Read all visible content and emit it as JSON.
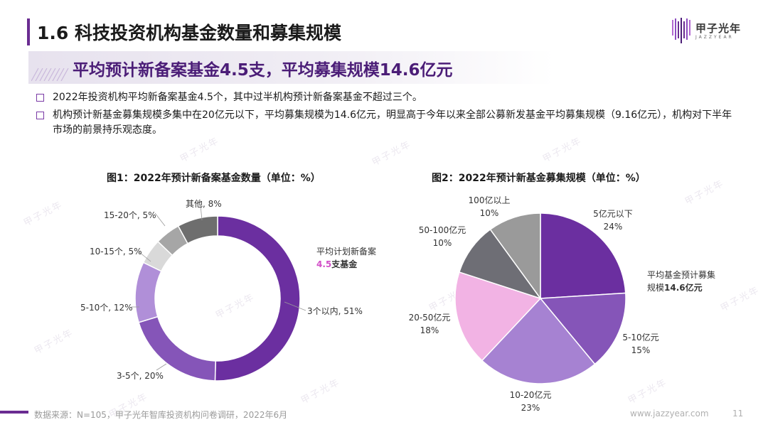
{
  "header": {
    "title": "1.6 科技投资机构基金数量和募集规模",
    "logo_cn": "甲子光年",
    "logo_en": "JAZZYEAR"
  },
  "subtitle": "平均预计新备案基金4.5支，平均募集规模14.6亿元",
  "bullets": [
    "2022年投资机构平均新备案基金4.5个，其中过半机构预计新备案基金不超过三个。",
    "机构预计新基金募集规模多集中在20亿元以下，平均募集规模为14.6亿元，明显高于今年以来全部公募新发基金平均募集规模（9.16亿元），机构对下半年市场的前景持乐观态度。"
  ],
  "watermark_text": "甲子光年",
  "chart_data": [
    {
      "type": "pie",
      "variant": "donut",
      "title": "图1：2022年预计新备案基金数量（单位：%）",
      "center_note": {
        "line1": "平均计划新备案",
        "line2_value": "4.5",
        "line2_suffix": "支基金"
      },
      "slices": [
        {
          "label": "3个以内, 51%",
          "value": 51,
          "color": "#6b2fa0"
        },
        {
          "label": "3-5个, 20%",
          "value": 20,
          "color": "#8555b8"
        },
        {
          "label": "5-10个, 12%",
          "value": 12,
          "color": "#b08fd8"
        },
        {
          "label": "10-15个, 5%",
          "value": 5,
          "color": "#d9d9d9"
        },
        {
          "label": "15-20个, 5%",
          "value": 5,
          "color": "#a6a6a6"
        },
        {
          "label": "其他, 8%",
          "value": 8,
          "color": "#6e6e6e"
        }
      ]
    },
    {
      "type": "pie",
      "title": "图2：2022年预计新基金募集规模（单位：%）",
      "note": {
        "line1": "平均基金预计募集",
        "line2_prefix": "规模",
        "line2_value": "14.6亿元"
      },
      "slices": [
        {
          "name": "5亿元以下",
          "pct": "24%",
          "value": 24,
          "color": "#6b2fa0"
        },
        {
          "name": "5-10亿元",
          "pct": "15%",
          "value": 15,
          "color": "#8555b8"
        },
        {
          "name": "10-20亿元",
          "pct": "23%",
          "value": 23,
          "color": "#a682d2"
        },
        {
          "name": "20-50亿元",
          "pct": "18%",
          "value": 18,
          "color": "#f2b3e4"
        },
        {
          "name": "50-100亿元",
          "pct": "10%",
          "value": 10,
          "color": "#6e6e75"
        },
        {
          "name": "100亿以上",
          "pct": "10%",
          "value": 10,
          "color": "#9a9a9a"
        }
      ]
    }
  ],
  "footer": {
    "source": "数据来源：N=105，甲子光年智库投资机构问卷调研，2022年6月",
    "url": "www.jazzyear.com",
    "page": "11"
  }
}
